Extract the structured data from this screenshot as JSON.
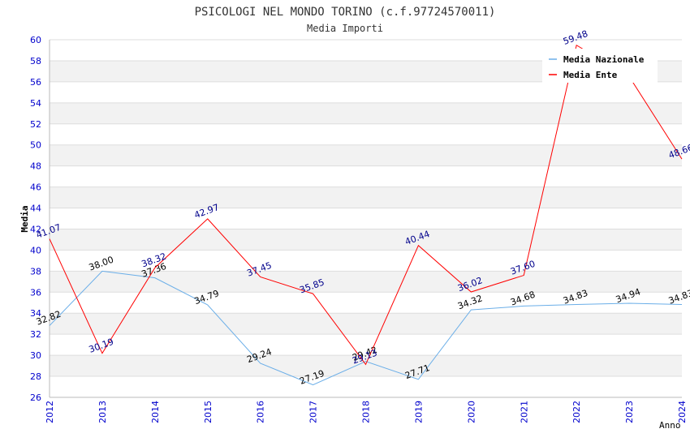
{
  "chart_data": {
    "type": "line",
    "title": "PSICOLOGI NEL MONDO TORINO (c.f.97724570011)",
    "subtitle": "Media Importi",
    "xlabel": "Anno",
    "ylabel": "Media",
    "ylim": [
      26,
      60
    ],
    "ytick_step": 2,
    "grid": true,
    "legend_position": "top-right",
    "x": [
      "2012",
      "2013",
      "2014",
      "2015",
      "2016",
      "2017",
      "2018",
      "2019",
      "2020",
      "2021",
      "2022",
      "2023",
      "2024"
    ],
    "series": [
      {
        "name": "Media Nazionale",
        "color": "#6aaee8",
        "label_color": "#000000",
        "values": [
          32.82,
          38.0,
          37.36,
          34.79,
          29.24,
          27.19,
          29.42,
          27.71,
          34.32,
          34.68,
          34.83,
          34.94,
          34.83
        ],
        "labels": [
          "32.82",
          "38.00",
          "37.36",
          "34.79",
          "29.24",
          "27.19",
          "29.42",
          "27.71",
          "34.32",
          "34.68",
          "34.83",
          "34.94",
          "34.83"
        ]
      },
      {
        "name": "Media Ente",
        "color": "#ff0000",
        "label_color": "#00008b",
        "values": [
          41.07,
          30.19,
          38.32,
          42.97,
          37.45,
          35.85,
          29.13,
          40.44,
          36.02,
          37.6,
          59.48,
          56.5,
          48.66
        ],
        "labels": [
          "41.07",
          "30.19",
          "38.32",
          "42.97",
          "37.45",
          "35.85",
          "29.13",
          "40.44",
          "36.02",
          "37.60",
          "59.48",
          "",
          "48.66"
        ]
      }
    ]
  },
  "colors": {
    "axis_tick_labels": "#0000cc",
    "band_fill": "#f2f2f2",
    "grid_line": "#dddddd"
  }
}
